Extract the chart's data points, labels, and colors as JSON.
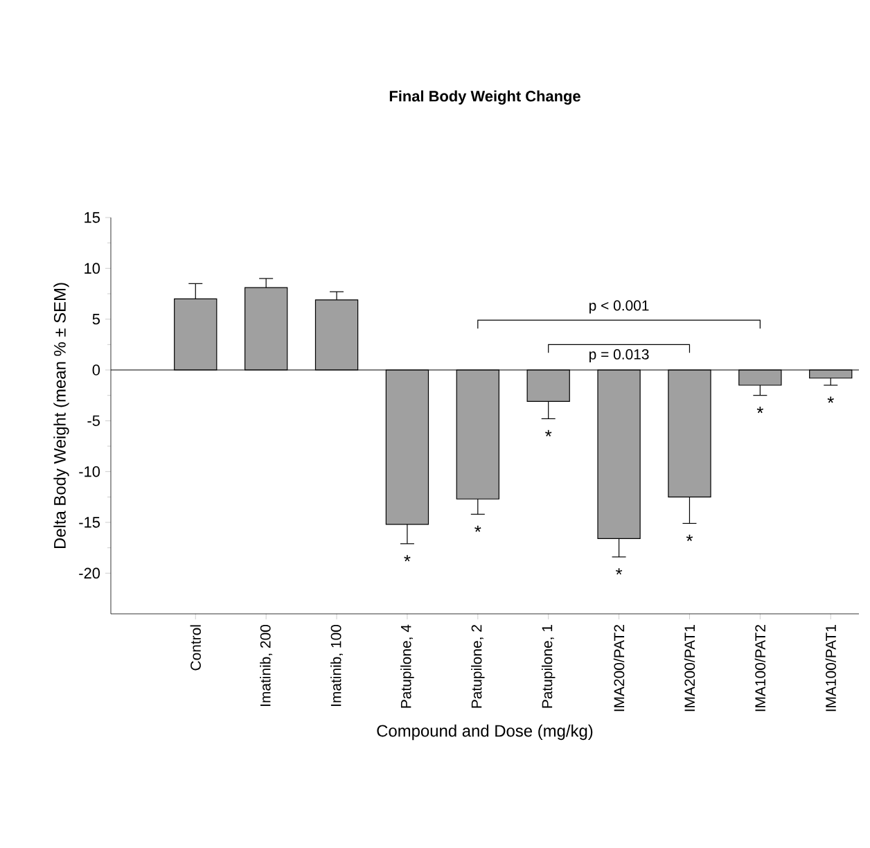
{
  "chart_data": {
    "type": "bar",
    "title": "Final Body Weight Change",
    "xlabel": "Compound and Dose (mg/kg)",
    "ylabel": "Delta Body Weight (mean % ± SEM)",
    "categories": [
      "Control",
      "Imatinib, 200",
      "Imatinib, 100",
      "Patupilone, 4",
      "Patupilone, 2",
      "Patupilone, 1",
      "IMA200/PAT2",
      "IMA200/PAT1",
      "IMA100/PAT2",
      "IMA100/PAT1"
    ],
    "values": [
      7.0,
      8.1,
      6.9,
      -15.2,
      -12.7,
      -3.1,
      -16.6,
      -12.5,
      -1.5,
      -0.8
    ],
    "errors": [
      [
        7.0,
        8.5
      ],
      [
        8.1,
        9.0
      ],
      [
        6.9,
        7.7
      ],
      [
        -17.1,
        -15.2
      ],
      [
        -14.2,
        -12.7
      ],
      [
        -4.8,
        -3.1
      ],
      [
        -18.4,
        -16.6
      ],
      [
        -15.1,
        -12.5
      ],
      [
        -2.5,
        -1.5
      ],
      [
        -1.5,
        -0.8
      ]
    ],
    "color": "#a0a0a0",
    "ylim": [
      -24,
      15
    ],
    "yticks": [
      -20,
      -15,
      -10,
      -5,
      0,
      5,
      10,
      15
    ],
    "ref_lines": [
      {
        "axis": "y",
        "value": 0,
        "color": "#000000"
      }
    ],
    "annotations": [
      "p < 0.001",
      "p = 0.013",
      "*",
      "*",
      "*",
      "*",
      "*",
      "*",
      "*"
    ]
  }
}
